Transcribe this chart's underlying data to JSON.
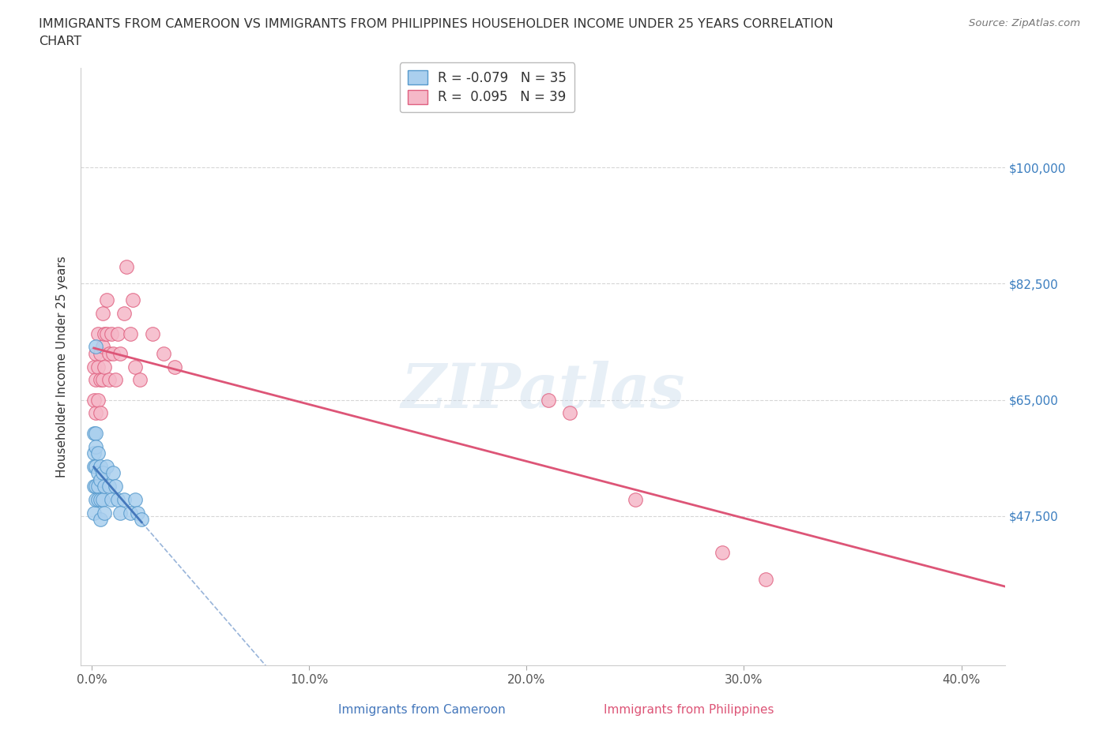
{
  "title_line1": "IMMIGRANTS FROM CAMEROON VS IMMIGRANTS FROM PHILIPPINES HOUSEHOLDER INCOME UNDER 25 YEARS CORRELATION",
  "title_line2": "CHART",
  "source": "Source: ZipAtlas.com",
  "ylabel": "Householder Income Under 25 years",
  "xlabel_ticks": [
    "0.0%",
    "10.0%",
    "20.0%",
    "30.0%",
    "40.0%"
  ],
  "xlabel_vals": [
    0.0,
    0.1,
    0.2,
    0.3,
    0.4
  ],
  "ylabel_ticks": [
    "$100,000",
    "$82,500",
    "$65,000",
    "$47,500"
  ],
  "ylabel_vals": [
    100000,
    82500,
    65000,
    47500
  ],
  "xlim": [
    -0.005,
    0.42
  ],
  "ylim": [
    25000,
    115000
  ],
  "cameroon_R": -0.079,
  "cameroon_N": 35,
  "philippines_R": 0.095,
  "philippines_N": 39,
  "cameroon_color": "#aacfee",
  "philippines_color": "#f5b8c8",
  "cameroon_edge_color": "#5599cc",
  "philippines_edge_color": "#e06080",
  "cameroon_line_color": "#4477bb",
  "philippines_line_color": "#dd5577",
  "watermark": "ZIPatlas",
  "dpi": 100,
  "bg_color": "#ffffff",
  "grid_color": "#cccccc",
  "cameroon_x": [
    0.001,
    0.001,
    0.001,
    0.001,
    0.001,
    0.002,
    0.002,
    0.002,
    0.002,
    0.002,
    0.003,
    0.003,
    0.003,
    0.003,
    0.004,
    0.004,
    0.004,
    0.004,
    0.005,
    0.005,
    0.006,
    0.006,
    0.007,
    0.008,
    0.009,
    0.01,
    0.011,
    0.012,
    0.013,
    0.015,
    0.018,
    0.02,
    0.021,
    0.023,
    0.002
  ],
  "cameroon_y": [
    57000,
    60000,
    55000,
    52000,
    48000,
    60000,
    58000,
    55000,
    52000,
    50000,
    57000,
    54000,
    52000,
    50000,
    55000,
    53000,
    50000,
    47000,
    54000,
    50000,
    52000,
    48000,
    55000,
    52000,
    50000,
    54000,
    52000,
    50000,
    48000,
    50000,
    48000,
    50000,
    48000,
    47000,
    73000
  ],
  "philippines_x": [
    0.001,
    0.001,
    0.002,
    0.002,
    0.002,
    0.003,
    0.003,
    0.003,
    0.004,
    0.004,
    0.004,
    0.005,
    0.005,
    0.005,
    0.006,
    0.006,
    0.007,
    0.007,
    0.008,
    0.008,
    0.009,
    0.01,
    0.011,
    0.012,
    0.013,
    0.015,
    0.016,
    0.018,
    0.019,
    0.02,
    0.022,
    0.028,
    0.033,
    0.038,
    0.21,
    0.22,
    0.25,
    0.29,
    0.31
  ],
  "philippines_y": [
    70000,
    65000,
    72000,
    68000,
    63000,
    75000,
    70000,
    65000,
    72000,
    68000,
    63000,
    78000,
    73000,
    68000,
    75000,
    70000,
    80000,
    75000,
    72000,
    68000,
    75000,
    72000,
    68000,
    75000,
    72000,
    78000,
    85000,
    75000,
    80000,
    70000,
    68000,
    75000,
    72000,
    70000,
    65000,
    63000,
    50000,
    42000,
    38000
  ],
  "cam_line_x_start": 0.001,
  "cam_line_x_solid_end": 0.023,
  "cam_line_x_end": 0.42,
  "phi_line_x_start": 0.001,
  "phi_line_x_end": 0.42
}
